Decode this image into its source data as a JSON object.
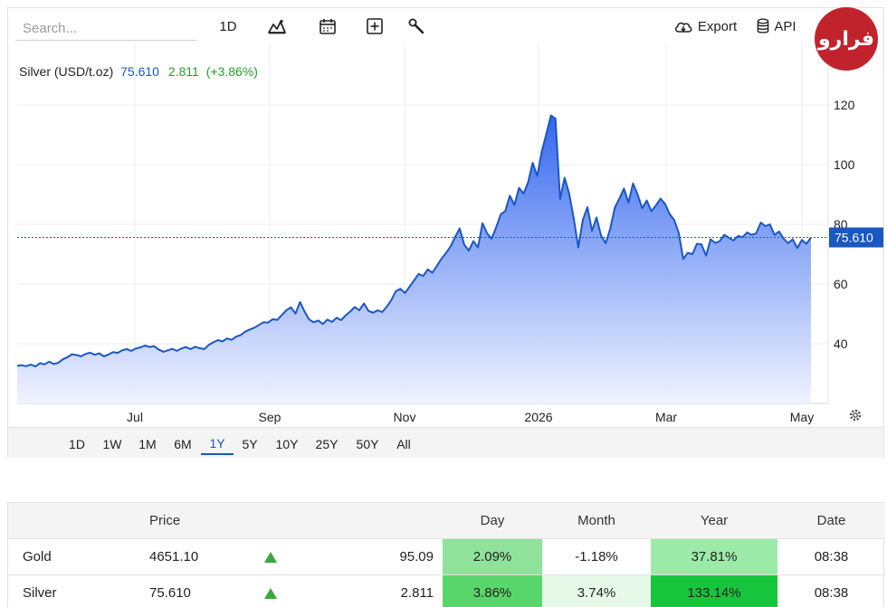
{
  "toolbar": {
    "search_placeholder": "Search...",
    "interval_label": "1D",
    "export_label": "Export",
    "api_label": "API"
  },
  "logo": {
    "text": "فرارو"
  },
  "instrument": {
    "name": "Silver (USD/t.oz)",
    "price": "75.610",
    "change": "2.811",
    "change_pct": "(+3.86%)",
    "last_label": "75.610"
  },
  "colors": {
    "line": "#1b57c2",
    "fill_top": "#2f63ee",
    "fill_bottom": "#eef1ff",
    "up": "#22a02c",
    "last_bg": "#1b57c2"
  },
  "chart_data": {
    "type": "area",
    "title": "Silver (USD/t.oz)",
    "x_ticks": [
      "Jul",
      "Sep",
      "Nov",
      "2026",
      "Mar",
      "May"
    ],
    "y_ticks": [
      40,
      60,
      80,
      100,
      120
    ],
    "ylim": [
      20,
      130
    ],
    "grid": true,
    "last_value": 75.61,
    "series": [
      {
        "name": "Silver (USD/t.oz)",
        "values": [
          32.6,
          32.8,
          32.5,
          33.0,
          32.4,
          33.5,
          33.1,
          34.0,
          33.2,
          33.6,
          34.8,
          35.5,
          36.5,
          36.2,
          35.8,
          36.6,
          37.0,
          36.3,
          36.8,
          35.8,
          36.4,
          37.2,
          36.9,
          37.8,
          38.2,
          37.6,
          38.4,
          38.8,
          39.4,
          38.9,
          39.2,
          38.1,
          37.3,
          37.8,
          38.3,
          37.6,
          38.4,
          38.9,
          38.2,
          39.0,
          38.5,
          38.2,
          39.6,
          40.5,
          41.2,
          40.8,
          41.8,
          41.3,
          42.4,
          42.9,
          44.1,
          44.8,
          45.4,
          46.3,
          47.2,
          47.1,
          48.2,
          48.0,
          49.6,
          51.2,
          52.2,
          50.1,
          54.0,
          50.8,
          48.1,
          47.2,
          47.8,
          46.6,
          48.1,
          47.3,
          48.7,
          47.9,
          49.5,
          50.8,
          52.3,
          51.2,
          53.5,
          51.0,
          50.4,
          51.2,
          50.6,
          52.4,
          54.6,
          57.6,
          58.4,
          57.0,
          59.1,
          61.2,
          63.4,
          62.7,
          64.9,
          63.8,
          66.1,
          68.5,
          70.4,
          72.6,
          75.8,
          78.6,
          73.2,
          71.2,
          74.4,
          72.3,
          80.4,
          77.0,
          75.2,
          79.0,
          83.4,
          84.5,
          89.6,
          86.5,
          92.2,
          90.3,
          94.1,
          100.6,
          96.2,
          104.5,
          110.4,
          116.5,
          115.4,
          88.5,
          95.6,
          90.2,
          82.0,
          72.3,
          81.5,
          85.8,
          77.8,
          82.3,
          76.2,
          73.7,
          78.5,
          85.6,
          88.6,
          92.0,
          87.3,
          93.7,
          90.0,
          85.4,
          88.0,
          84.4,
          86.3,
          88.6,
          86.9,
          83.5,
          81.5,
          77.2,
          68.4,
          70.5,
          70.0,
          73.5,
          73.3,
          69.5,
          75.0,
          73.8,
          74.4,
          76.5,
          75.5,
          74.6,
          76.1,
          75.7,
          77.3,
          76.5,
          77.0,
          80.6,
          79.4,
          80.0,
          76.5,
          77.6,
          75.2,
          73.7,
          75.0,
          72.1,
          74.8,
          73.5,
          75.61
        ]
      }
    ]
  },
  "ranges": [
    "1D",
    "1W",
    "1M",
    "6M",
    "1Y",
    "5Y",
    "10Y",
    "25Y",
    "50Y",
    "All"
  ],
  "active_range": "1Y",
  "table": {
    "headers": [
      "",
      "Price",
      "",
      "",
      "Day",
      "Month",
      "Year",
      "Date"
    ],
    "rows": [
      {
        "name": "Gold",
        "price": "4651.10",
        "change": "95.09",
        "day": "2.09%",
        "month": "-1.18%",
        "year": "37.81%",
        "date": "08:38"
      },
      {
        "name": "Silver",
        "price": "75.610",
        "change": "2.811",
        "day": "3.86%",
        "month": "3.74%",
        "year": "133.14%",
        "date": "08:38"
      }
    ]
  }
}
